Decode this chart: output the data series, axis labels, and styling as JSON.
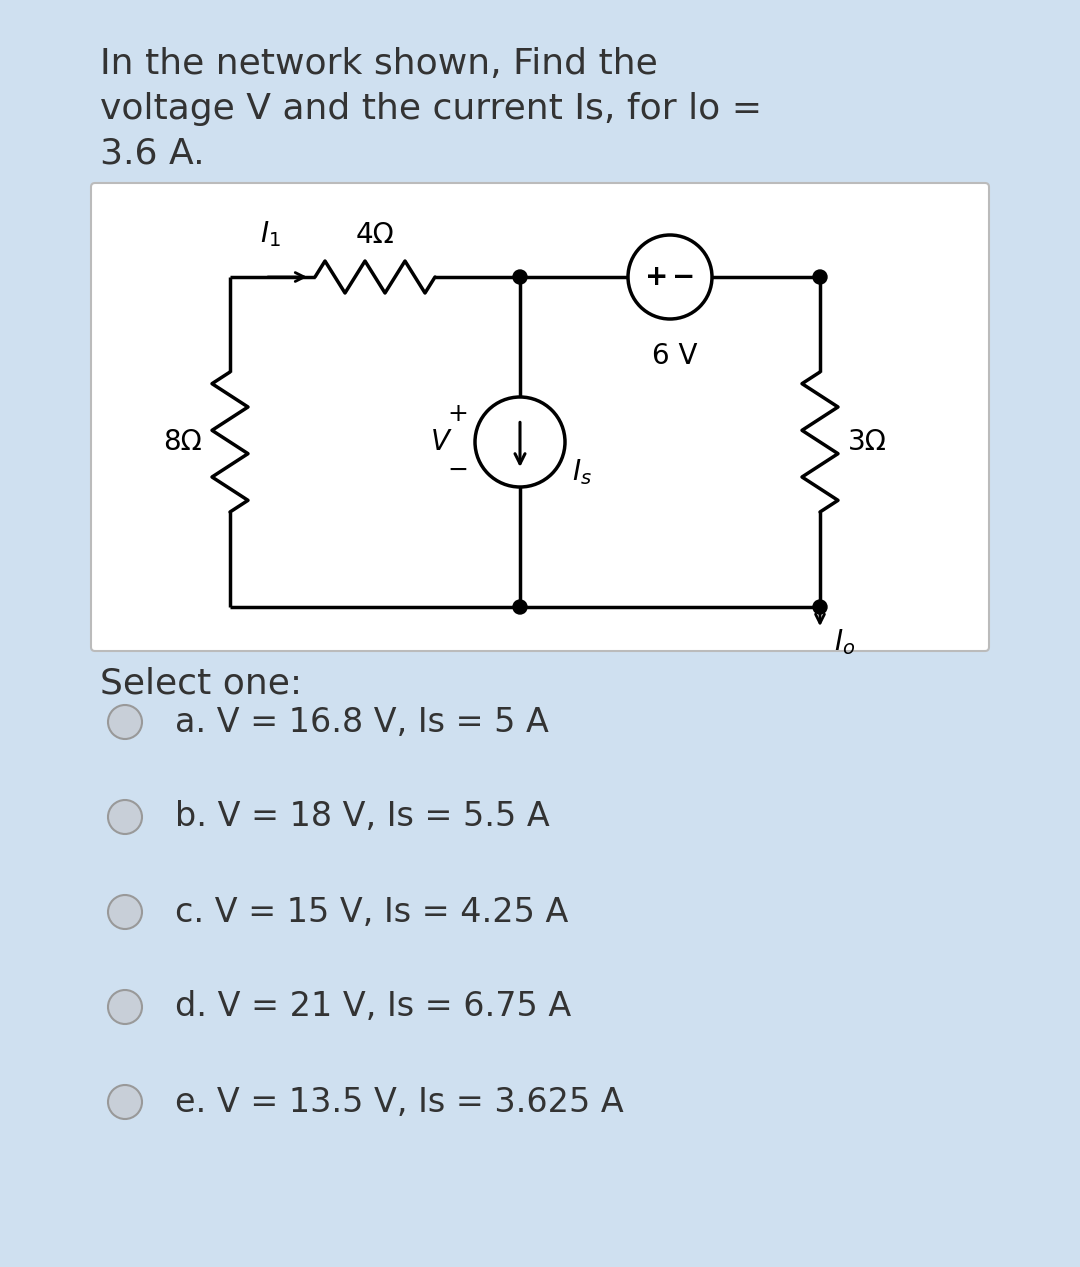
{
  "bg_color": "#cfe0f0",
  "white_bg": "#ffffff",
  "question_line1": "In the network shown, Find the",
  "question_line2": "voltage V and the current Is, for lo =",
  "question_line3": "3.6 A.",
  "select_text": "Select one:",
  "options": [
    "a. V = 16.8 V, Is = 5 A",
    "b. V = 18 V, Is = 5.5 A",
    "c. V = 15 V, Is = 4.25 A",
    "d. V = 21 V, Is = 6.75 A",
    "e. V = 13.5 V, Is = 3.625 A"
  ],
  "R1_label": "4Ω",
  "R2_label": "8Ω",
  "R3_label": "3Ω",
  "V_source_label": "6 V",
  "text_color": "#333333",
  "circuit_lw": 2.5
}
